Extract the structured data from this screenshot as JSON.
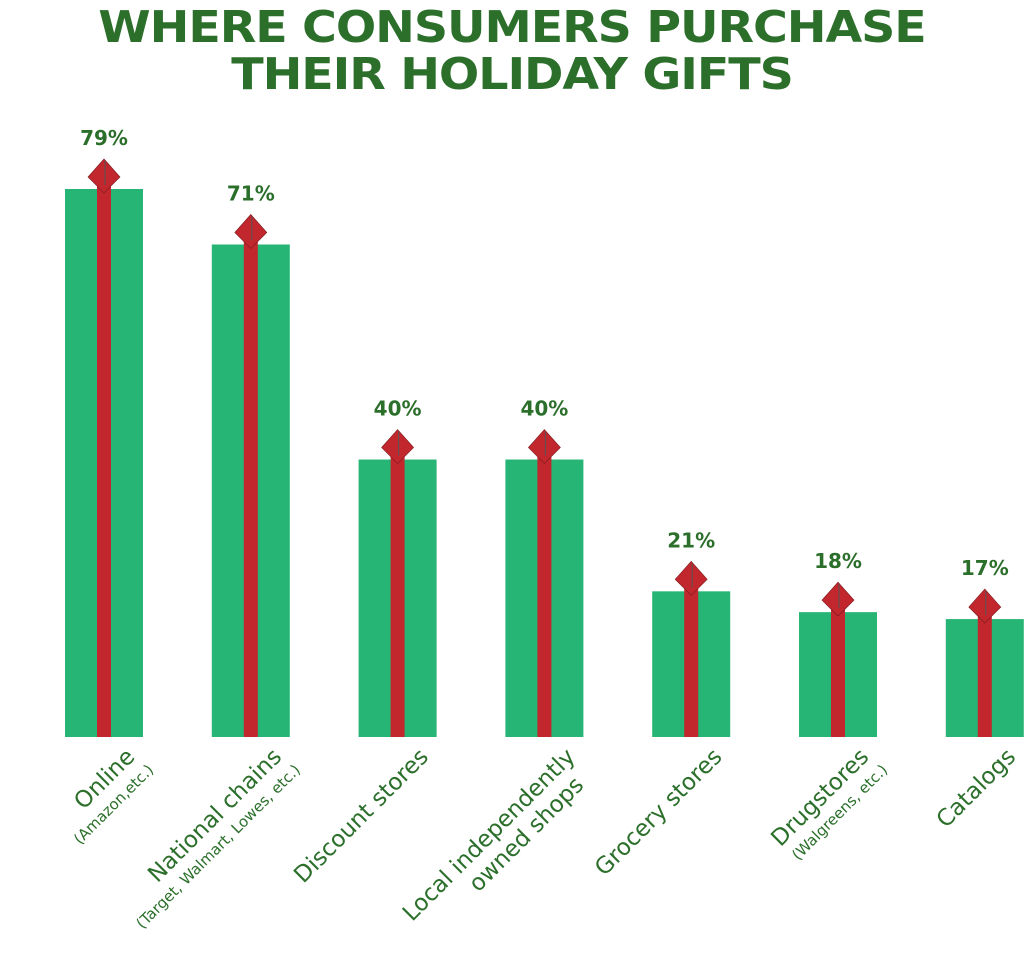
{
  "chart_data": {
    "type": "bar",
    "title_lines": [
      "WHERE CONSUMERS PURCHASE",
      "THEIR HOLIDAY GIFTS"
    ],
    "categories": [
      {
        "label": "Online",
        "sub": "(Amazon,etc.)"
      },
      {
        "label": "National chains",
        "sub": "(Target, Walmart, Lowes, etc.)"
      },
      {
        "label": "Discount stores",
        "sub": ""
      },
      {
        "label": "Local independently",
        "label2": "owned shops",
        "sub": ""
      },
      {
        "label": "Grocery stores",
        "sub": ""
      },
      {
        "label": "Drugstores",
        "sub": "(Walgreens, etc.)"
      },
      {
        "label": "Catalogs",
        "sub": ""
      }
    ],
    "values": [
      79,
      71,
      40,
      40,
      21,
      18,
      17
    ],
    "data_labels": [
      "79%",
      "71%",
      "40%",
      "40%",
      "21%",
      "18%",
      "17%"
    ],
    "ylim": [
      0,
      79
    ],
    "unit": "%",
    "grid": false,
    "colors": {
      "bar": "#26b574",
      "ribbon": "#c1272d",
      "text": "#2b6f2b"
    }
  }
}
